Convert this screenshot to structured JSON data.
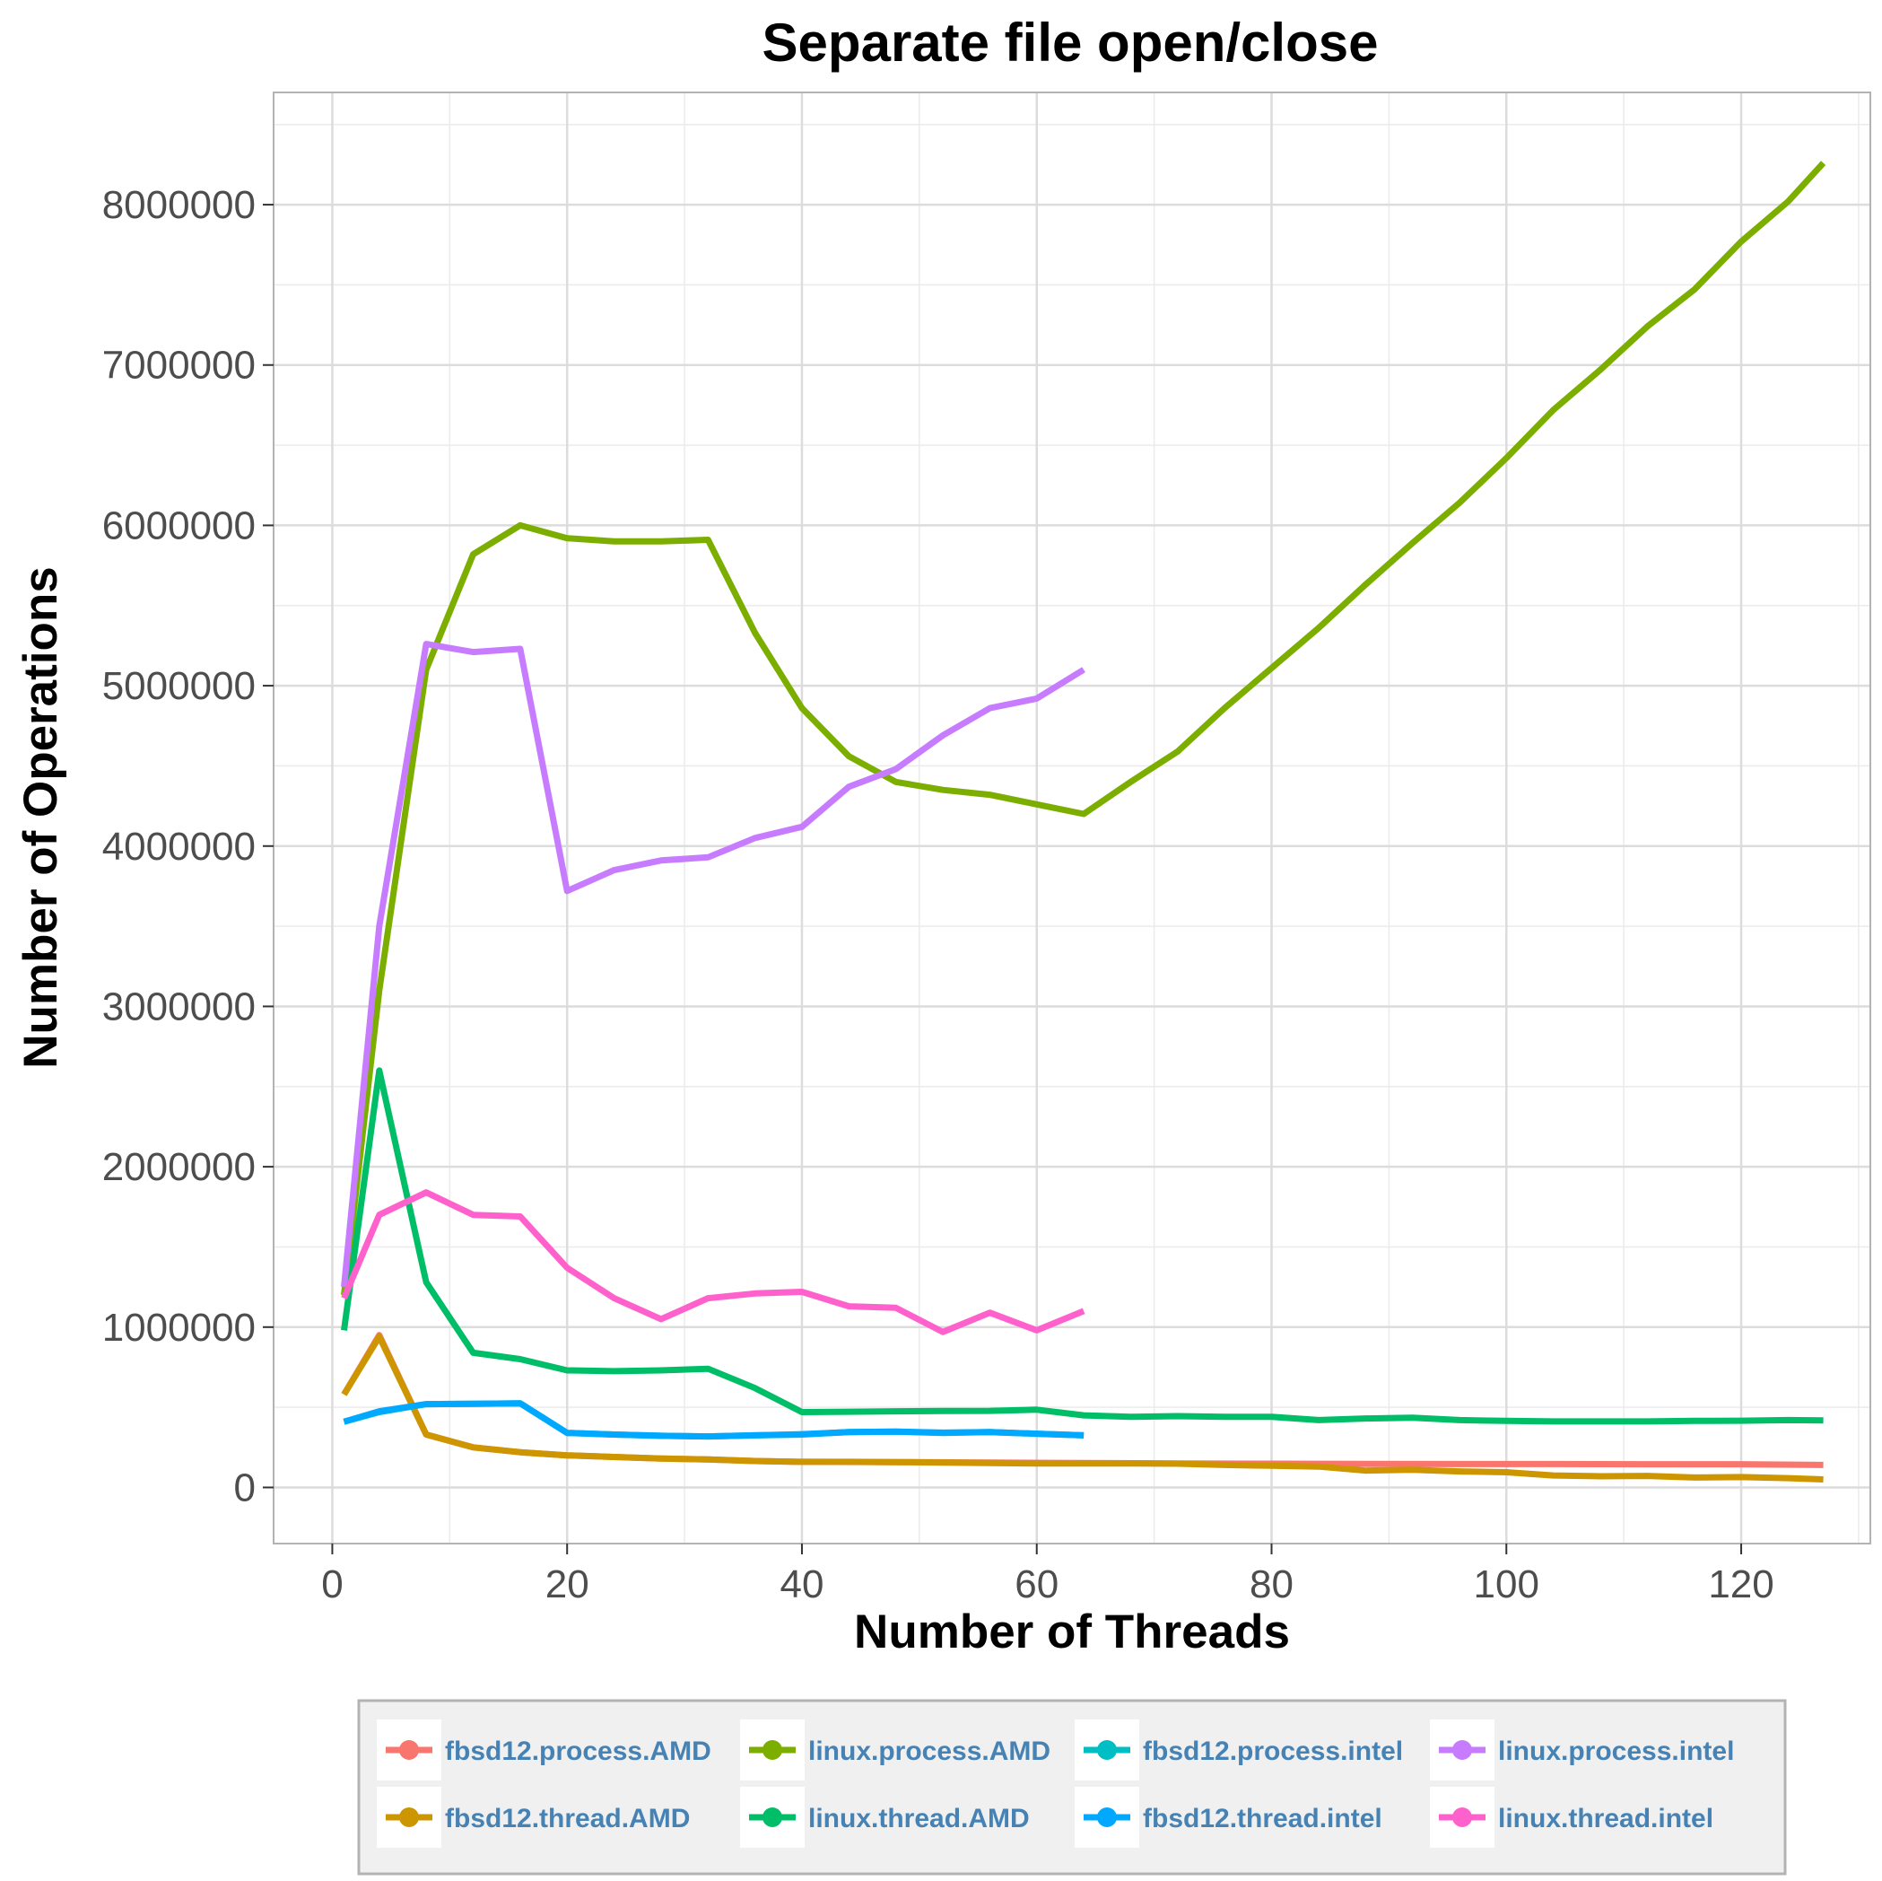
{
  "chart_data": {
    "type": "line",
    "title": "Separate file open/close",
    "xlabel": "Number of Threads",
    "ylabel": "Number of Operations",
    "xlim": [
      -5,
      131
    ],
    "ylim": [
      -350000,
      8700000
    ],
    "x_ticks": [
      0,
      20,
      40,
      60,
      80,
      100,
      120
    ],
    "y_ticks": [
      0,
      1000000,
      2000000,
      3000000,
      4000000,
      5000000,
      6000000,
      7000000,
      8000000
    ],
    "grid": true,
    "legend_position": "bottom",
    "series": [
      {
        "name": "fbsd12.process.AMD",
        "color": "#F8766D",
        "points": [
          [
            1,
            580000
          ],
          [
            4,
            950000
          ],
          [
            8,
            330000
          ],
          [
            12,
            250000
          ],
          [
            16,
            220000
          ],
          [
            20,
            200000
          ],
          [
            24,
            190000
          ],
          [
            28,
            180000
          ],
          [
            32,
            175000
          ],
          [
            36,
            165000
          ],
          [
            40,
            160000
          ],
          [
            48,
            158000
          ],
          [
            56,
            155000
          ],
          [
            64,
            152000
          ],
          [
            72,
            150000
          ],
          [
            80,
            148000
          ],
          [
            88,
            147000
          ],
          [
            96,
            146000
          ],
          [
            104,
            146000
          ],
          [
            112,
            145000
          ],
          [
            120,
            145000
          ],
          [
            127,
            140000
          ]
        ]
      },
      {
        "name": "fbsd12.thread.AMD",
        "color": "#CD9600",
        "points": [
          [
            1,
            580000
          ],
          [
            4,
            940000
          ],
          [
            8,
            330000
          ],
          [
            12,
            250000
          ],
          [
            16,
            220000
          ],
          [
            20,
            200000
          ],
          [
            24,
            190000
          ],
          [
            28,
            180000
          ],
          [
            32,
            175000
          ],
          [
            36,
            165000
          ],
          [
            40,
            160000
          ],
          [
            44,
            160000
          ],
          [
            48,
            158000
          ],
          [
            52,
            155000
          ],
          [
            56,
            152000
          ],
          [
            60,
            150000
          ],
          [
            64,
            150000
          ],
          [
            68,
            150000
          ],
          [
            72,
            148000
          ],
          [
            76,
            140000
          ],
          [
            80,
            135000
          ],
          [
            84,
            130000
          ],
          [
            88,
            105000
          ],
          [
            92,
            110000
          ],
          [
            96,
            100000
          ],
          [
            100,
            95000
          ],
          [
            104,
            75000
          ],
          [
            108,
            70000
          ],
          [
            112,
            72000
          ],
          [
            116,
            62000
          ],
          [
            120,
            65000
          ],
          [
            124,
            58000
          ],
          [
            127,
            50000
          ]
        ]
      },
      {
        "name": "linux.process.AMD",
        "color": "#7CAE00",
        "points": [
          [
            1,
            1200000
          ],
          [
            4,
            3100000
          ],
          [
            8,
            5100000
          ],
          [
            12,
            5820000
          ],
          [
            16,
            6000000
          ],
          [
            20,
            5920000
          ],
          [
            24,
            5900000
          ],
          [
            28,
            5900000
          ],
          [
            32,
            5910000
          ],
          [
            36,
            5330000
          ],
          [
            40,
            4860000
          ],
          [
            44,
            4560000
          ],
          [
            48,
            4400000
          ],
          [
            52,
            4350000
          ],
          [
            56,
            4320000
          ],
          [
            60,
            4260000
          ],
          [
            64,
            4200000
          ],
          [
            68,
            4400000
          ],
          [
            72,
            4590000
          ],
          [
            76,
            4860000
          ],
          [
            80,
            5110000
          ],
          [
            84,
            5360000
          ],
          [
            88,
            5630000
          ],
          [
            92,
            5890000
          ],
          [
            96,
            6140000
          ],
          [
            100,
            6420000
          ],
          [
            104,
            6720000
          ],
          [
            108,
            6970000
          ],
          [
            112,
            7240000
          ],
          [
            116,
            7470000
          ],
          [
            120,
            7770000
          ],
          [
            124,
            8020000
          ],
          [
            127,
            8260000
          ]
        ]
      },
      {
        "name": "linux.thread.AMD",
        "color": "#00BE67",
        "points": [
          [
            1,
            980000
          ],
          [
            4,
            2600000
          ],
          [
            8,
            1280000
          ],
          [
            12,
            840000
          ],
          [
            16,
            800000
          ],
          [
            20,
            730000
          ],
          [
            24,
            725000
          ],
          [
            28,
            730000
          ],
          [
            32,
            740000
          ],
          [
            36,
            620000
          ],
          [
            40,
            470000
          ],
          [
            44,
            472000
          ],
          [
            48,
            475000
          ],
          [
            52,
            477000
          ],
          [
            56,
            478000
          ],
          [
            60,
            485000
          ],
          [
            64,
            450000
          ],
          [
            68,
            440000
          ],
          [
            72,
            445000
          ],
          [
            76,
            440000
          ],
          [
            80,
            440000
          ],
          [
            84,
            420000
          ],
          [
            88,
            430000
          ],
          [
            92,
            435000
          ],
          [
            96,
            420000
          ],
          [
            100,
            415000
          ],
          [
            104,
            412000
          ],
          [
            108,
            412000
          ],
          [
            112,
            412000
          ],
          [
            116,
            415000
          ],
          [
            120,
            416000
          ],
          [
            124,
            420000
          ],
          [
            127,
            418000
          ]
        ]
      },
      {
        "name": "fbsd12.process.intel",
        "color": "#00BFC4",
        "points": [
          [
            1,
            410000
          ],
          [
            4,
            470000
          ],
          [
            8,
            520000
          ],
          [
            12,
            522000
          ],
          [
            16,
            525000
          ],
          [
            20,
            340000
          ],
          [
            24,
            330000
          ],
          [
            28,
            322000
          ],
          [
            32,
            318000
          ],
          [
            36,
            325000
          ],
          [
            40,
            330000
          ],
          [
            44,
            345000
          ],
          [
            48,
            348000
          ],
          [
            52,
            340000
          ],
          [
            56,
            345000
          ],
          [
            60,
            335000
          ],
          [
            64,
            325000
          ]
        ]
      },
      {
        "name": "fbsd12.thread.intel",
        "color": "#00A9FF",
        "points": [
          [
            1,
            410000
          ],
          [
            4,
            475000
          ],
          [
            8,
            520000
          ],
          [
            12,
            522000
          ],
          [
            16,
            525000
          ],
          [
            20,
            340000
          ],
          [
            24,
            330000
          ],
          [
            28,
            322000
          ],
          [
            32,
            318000
          ],
          [
            36,
            325000
          ],
          [
            40,
            332000
          ],
          [
            44,
            345000
          ],
          [
            48,
            348000
          ],
          [
            52,
            342000
          ],
          [
            56,
            345000
          ],
          [
            60,
            335000
          ],
          [
            64,
            325000
          ]
        ]
      },
      {
        "name": "linux.process.intel",
        "color": "#C77CFF",
        "points": [
          [
            1,
            1250000
          ],
          [
            4,
            3500000
          ],
          [
            8,
            5260000
          ],
          [
            12,
            5210000
          ],
          [
            16,
            5230000
          ],
          [
            20,
            3720000
          ],
          [
            24,
            3850000
          ],
          [
            28,
            3910000
          ],
          [
            32,
            3930000
          ],
          [
            36,
            4050000
          ],
          [
            40,
            4120000
          ],
          [
            44,
            4370000
          ],
          [
            48,
            4480000
          ],
          [
            52,
            4690000
          ],
          [
            56,
            4860000
          ],
          [
            60,
            4920000
          ],
          [
            64,
            5100000
          ]
        ]
      },
      {
        "name": "linux.thread.intel",
        "color": "#FF61CC",
        "points": [
          [
            1,
            1180000
          ],
          [
            4,
            1700000
          ],
          [
            8,
            1840000
          ],
          [
            12,
            1700000
          ],
          [
            16,
            1690000
          ],
          [
            20,
            1370000
          ],
          [
            24,
            1180000
          ],
          [
            28,
            1050000
          ],
          [
            32,
            1180000
          ],
          [
            36,
            1210000
          ],
          [
            40,
            1220000
          ],
          [
            44,
            1130000
          ],
          [
            48,
            1120000
          ],
          [
            52,
            970000
          ],
          [
            56,
            1090000
          ],
          [
            60,
            980000
          ],
          [
            64,
            1100000
          ]
        ]
      }
    ]
  }
}
